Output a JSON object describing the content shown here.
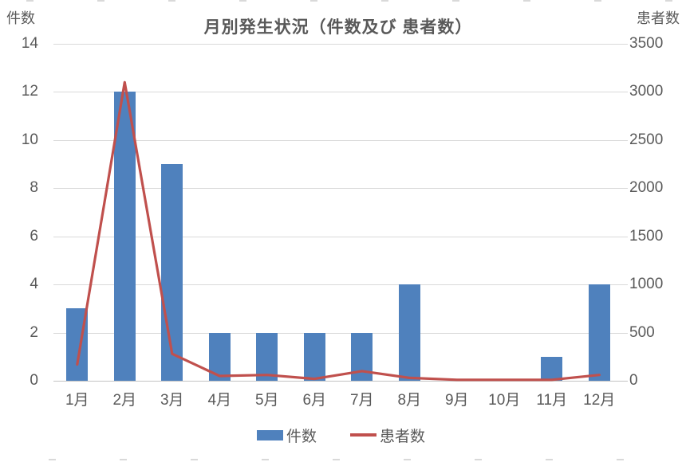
{
  "chart_data": {
    "type": "bar",
    "subtype": "combo-bar-line-dual-axis",
    "title": "月別発生状況（件数及び 患者数）",
    "categories": [
      "1月",
      "2月",
      "3月",
      "4月",
      "5月",
      "6月",
      "7月",
      "8月",
      "9月",
      "10月",
      "11月",
      "12月"
    ],
    "series": [
      {
        "name": "件数",
        "type": "bar",
        "axis": "left",
        "color": "#4f81bd",
        "values": [
          3,
          12,
          9,
          2,
          2,
          2,
          2,
          4,
          0,
          0,
          1,
          4
        ]
      },
      {
        "name": "患者数",
        "type": "line",
        "axis": "right",
        "color": "#c0504d",
        "values": [
          170,
          3100,
          280,
          50,
          60,
          20,
          100,
          30,
          10,
          10,
          10,
          60
        ]
      }
    ],
    "left_axis": {
      "label": "件数",
      "min": 0,
      "max": 14,
      "ticks": [
        0,
        2,
        4,
        6,
        8,
        10,
        12,
        14
      ]
    },
    "right_axis": {
      "label": "患者数",
      "min": 0,
      "max": 3500,
      "ticks": [
        0,
        500,
        1000,
        1500,
        2000,
        2500,
        3000,
        3500
      ]
    },
    "grid": true,
    "legend_position": "bottom",
    "colors": {
      "grid": "#d9d9d9",
      "baseline": "#c3c3c3",
      "text": "#595959",
      "background": "#ffffff"
    }
  }
}
